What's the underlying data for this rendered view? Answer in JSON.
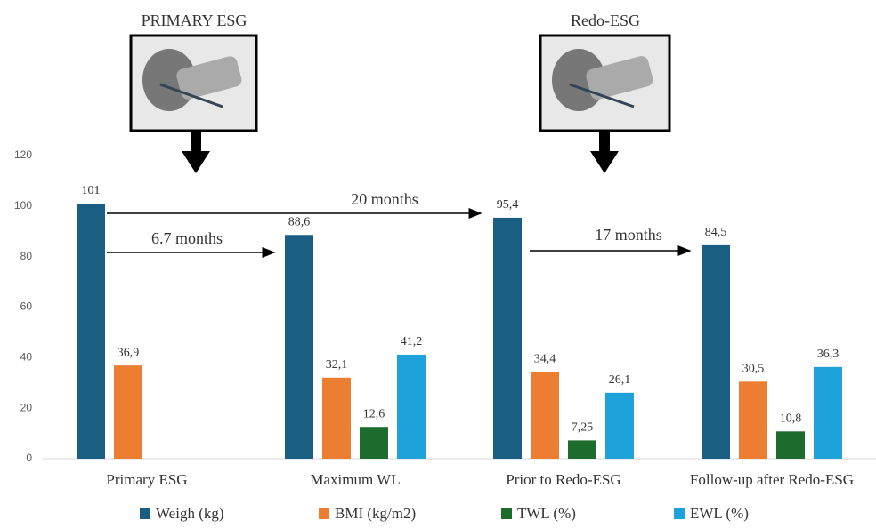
{
  "chart_data": {
    "type": "bar",
    "annotations": {
      "left_title": "PRIMARY ESG",
      "right_title": "Redo-ESG",
      "span_long": "20 months",
      "span_first": "6.7 months",
      "span_second": "17 months"
    },
    "categories": [
      "Primary ESG",
      "Maximum WL",
      "Prior to Redo-ESG",
      "Follow-up after Redo-ESG"
    ],
    "series": [
      {
        "name": "Weigh (kg)",
        "color": "#1b5e83",
        "values": [
          101,
          88.6,
          95.4,
          84.5
        ],
        "value_labels": [
          "101",
          "88,6",
          "95,4",
          "84,5"
        ]
      },
      {
        "name": "BMI (kg/m2)",
        "color": "#ed7d31",
        "values": [
          36.9,
          32.1,
          34.4,
          30.5
        ],
        "value_labels": [
          "36,9",
          "32,1",
          "34,4",
          "30,5"
        ]
      },
      {
        "name": "TWL (%)",
        "color": "#1e6b2e",
        "values": [
          null,
          12.6,
          7.25,
          10.8
        ],
        "value_labels": [
          null,
          "12,6",
          "7,25",
          "10,8"
        ]
      },
      {
        "name": "EWL (%)",
        "color": "#1fa2da",
        "values": [
          null,
          41.2,
          26.1,
          36.3
        ],
        "value_labels": [
          null,
          "41,2",
          "26,1",
          "36,3"
        ]
      }
    ],
    "ylim": [
      0,
      120
    ],
    "yticks": [
      0,
      20,
      40,
      60,
      80,
      100,
      120
    ],
    "grid": false
  }
}
